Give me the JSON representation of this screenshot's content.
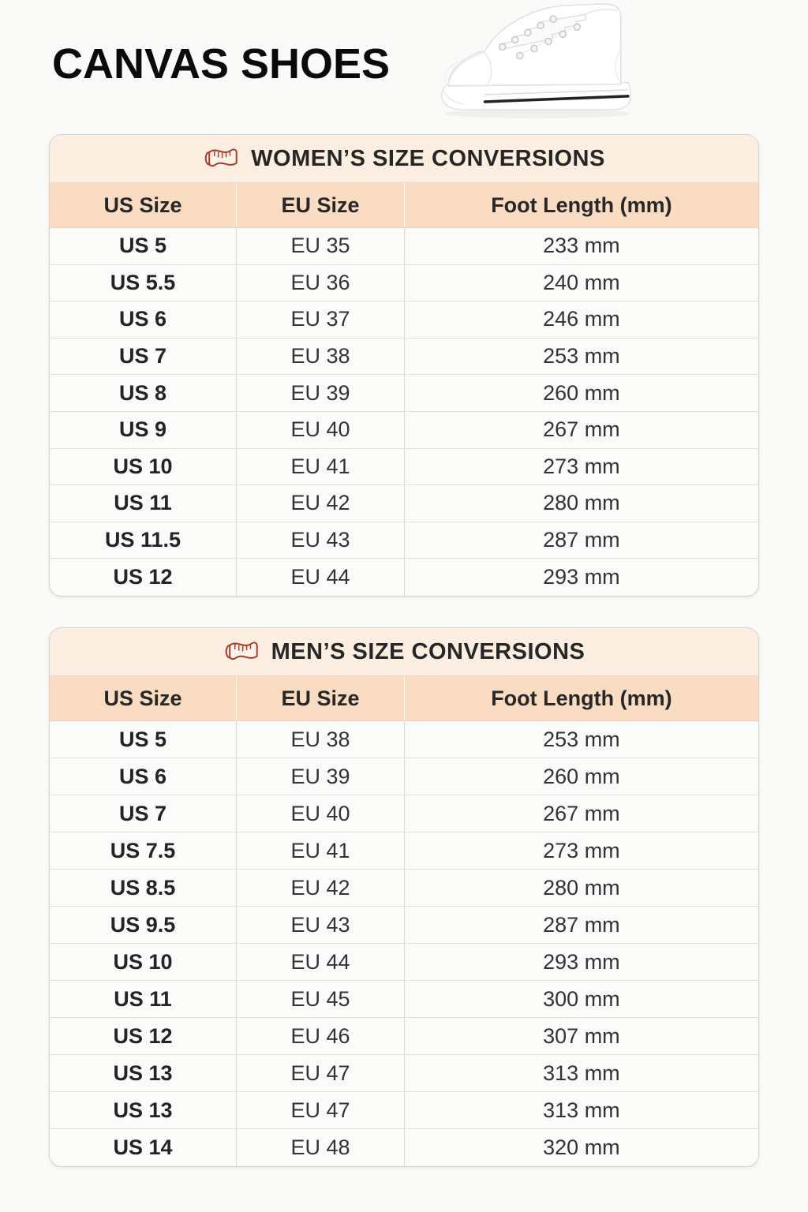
{
  "header": {
    "title": "CANVAS SHOES",
    "image": "white-hightop-canvas-sneaker-side-view"
  },
  "colors": {
    "page_bg": "#fafaf8",
    "table_title_bg": "#fcefe2",
    "column_header_bg": "#f9dcc2",
    "row_bg": "#fbfbfa",
    "icon_maroon": "#a63c2a",
    "title_text": "#0b0b0b",
    "cell_text": "#333333",
    "sole_stripe": "#222222"
  },
  "icons": {
    "table_title_icon": "measuring-tape-icon"
  },
  "tables": [
    {
      "title": "WOMEN’S SIZE CONVERSIONS",
      "columns": [
        "US Size",
        "EU Size",
        "Foot Length (mm)"
      ],
      "rows": [
        [
          "US 5",
          "EU 35",
          "233 mm"
        ],
        [
          "US 5.5",
          "EU 36",
          "240 mm"
        ],
        [
          "US 6",
          "EU 37",
          "246 mm"
        ],
        [
          "US 7",
          "EU 38",
          "253 mm"
        ],
        [
          "US 8",
          "EU 39",
          "260 mm"
        ],
        [
          "US 9",
          "EU 40",
          "267 mm"
        ],
        [
          "US 10",
          "EU 41",
          "273 mm"
        ],
        [
          "US 11",
          "EU 42",
          "280 mm"
        ],
        [
          "US 11.5",
          "EU 43",
          "287 mm"
        ],
        [
          "US 12",
          "EU 44",
          "293 mm"
        ]
      ]
    },
    {
      "title": "MEN’S SIZE CONVERSIONS",
      "columns": [
        "US Size",
        "EU Size",
        "Foot Length (mm)"
      ],
      "rows": [
        [
          "US 5",
          "EU 38",
          "253 mm"
        ],
        [
          "US 6",
          "EU 39",
          "260 mm"
        ],
        [
          "US 7",
          "EU 40",
          "267 mm"
        ],
        [
          "US 7.5",
          "EU 41",
          "273 mm"
        ],
        [
          "US 8.5",
          "EU 42",
          "280 mm"
        ],
        [
          "US 9.5",
          "EU 43",
          "287 mm"
        ],
        [
          "US 10",
          "EU 44",
          "293 mm"
        ],
        [
          "US 11",
          "EU 45",
          "300 mm"
        ],
        [
          "US 12",
          "EU 46",
          "307 mm"
        ],
        [
          "US 13",
          "EU 47",
          "313 mm"
        ],
        [
          "US 13",
          "EU 47",
          "313 mm"
        ],
        [
          "US 14",
          "EU 48",
          "320 mm"
        ]
      ]
    }
  ]
}
